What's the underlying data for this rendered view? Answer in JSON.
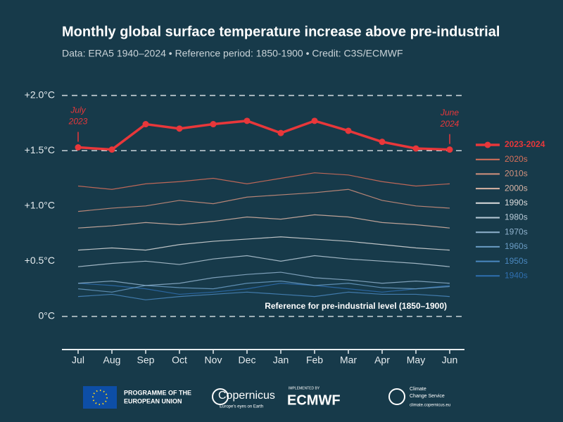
{
  "chart_data": {
    "type": "line",
    "title": "Monthly global surface temperature increase above pre-industrial",
    "subtitle": "Data: ERA5 1940–2024 • Reference period: 1850-1900 • Credit: C3S/ECMWF",
    "categories": [
      "Jul",
      "Aug",
      "Sep",
      "Oct",
      "Nov",
      "Dec",
      "Jan",
      "Feb",
      "Mar",
      "Apr",
      "May",
      "Jun"
    ],
    "ylim": [
      -0.3,
      2.1
    ],
    "yticks": [
      {
        "value": 0,
        "label": "0°C"
      },
      {
        "value": 0.5,
        "label": "+0.5°C"
      },
      {
        "value": 1,
        "label": "+1.0°C"
      },
      {
        "value": 1.5,
        "label": "+1.5°C"
      },
      {
        "value": 2,
        "label": "+2.0°C"
      }
    ],
    "hlines": [
      0,
      1.5,
      2
    ],
    "legend": "right",
    "annotations": {
      "start": [
        "July",
        "2023"
      ],
      "end": [
        "June",
        "2024"
      ],
      "reference": "Reference for pre-industrial level (1850–1900)"
    },
    "series": [
      {
        "name": "2023-2024",
        "color": "#e8373a",
        "markers": true,
        "values": [
          1.53,
          1.51,
          1.74,
          1.7,
          1.74,
          1.77,
          1.66,
          1.77,
          1.68,
          1.58,
          1.52,
          1.51
        ]
      },
      {
        "name": "2020s",
        "color": "#d9705a",
        "values": [
          1.18,
          1.15,
          1.2,
          1.22,
          1.25,
          1.2,
          1.25,
          1.3,
          1.28,
          1.22,
          1.18,
          1.2
        ]
      },
      {
        "name": "2010s",
        "color": "#d4927e",
        "values": [
          0.95,
          0.98,
          1.0,
          1.05,
          1.02,
          1.08,
          1.1,
          1.12,
          1.15,
          1.05,
          1.0,
          0.98
        ]
      },
      {
        "name": "2000s",
        "color": "#d9b4a4",
        "values": [
          0.8,
          0.82,
          0.85,
          0.83,
          0.86,
          0.9,
          0.88,
          0.92,
          0.9,
          0.85,
          0.83,
          0.8
        ]
      },
      {
        "name": "1990s",
        "color": "#dcdcdc",
        "values": [
          0.6,
          0.62,
          0.6,
          0.65,
          0.68,
          0.7,
          0.72,
          0.7,
          0.68,
          0.65,
          0.62,
          0.6
        ]
      },
      {
        "name": "1980s",
        "color": "#b9cbd8",
        "values": [
          0.45,
          0.48,
          0.5,
          0.47,
          0.52,
          0.55,
          0.5,
          0.55,
          0.52,
          0.5,
          0.48,
          0.45
        ]
      },
      {
        "name": "1970s",
        "color": "#8fb1cc",
        "values": [
          0.3,
          0.32,
          0.28,
          0.3,
          0.35,
          0.38,
          0.4,
          0.35,
          0.33,
          0.3,
          0.32,
          0.3
        ]
      },
      {
        "name": "1960s",
        "color": "#6a9cc4",
        "values": [
          0.25,
          0.22,
          0.28,
          0.26,
          0.25,
          0.3,
          0.32,
          0.28,
          0.3,
          0.26,
          0.25,
          0.27
        ]
      },
      {
        "name": "1950s",
        "color": "#4a88c0",
        "values": [
          0.18,
          0.2,
          0.15,
          0.18,
          0.2,
          0.22,
          0.2,
          0.18,
          0.22,
          0.2,
          0.2,
          0.18
        ]
      },
      {
        "name": "1940s",
        "color": "#2f6fb0",
        "values": [
          0.3,
          0.28,
          0.25,
          0.2,
          0.22,
          0.25,
          0.3,
          0.28,
          0.25,
          0.22,
          0.25,
          0.28
        ]
      }
    ]
  },
  "footer": {
    "eu": [
      "PROGRAMME OF THE",
      "EUROPEAN UNION"
    ],
    "copernicus": "Copernicus",
    "copernicus_tagline": "Europe's eyes on Earth",
    "implemented": "IMPLEMENTED BY",
    "ecmwf": "ECMWF",
    "c3s": [
      "Climate",
      "Change Service"
    ],
    "c3s_url": "climate.copernicus.eu"
  }
}
